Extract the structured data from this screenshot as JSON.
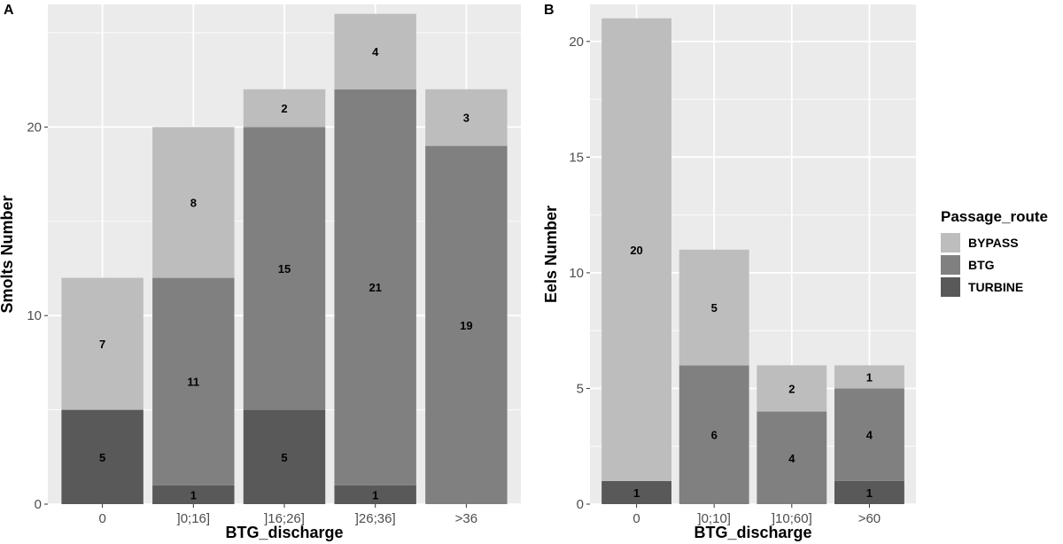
{
  "colors": {
    "panel_bg": "#ebebeb",
    "grid": "#ffffff",
    "BYPASS": "#bdbdbd",
    "BTG": "#808080",
    "TURBINE": "#595959"
  },
  "legend": {
    "title": "Passage_route",
    "items": [
      "BYPASS",
      "BTG",
      "TURBINE"
    ]
  },
  "chart_data": [
    {
      "type": "bar",
      "panel": "A",
      "xlabel": "BTG_discharge",
      "ylabel": "Smolts Number",
      "ylim": [
        0,
        26.5
      ],
      "yticks": [
        0,
        10,
        20
      ],
      "categories": [
        "0",
        "]0;16]",
        "]16;26]",
        "]26;36]",
        ">36"
      ],
      "series": [
        {
          "name": "TURBINE",
          "values": [
            5,
            1,
            5,
            1,
            0
          ],
          "labels": [
            "5",
            "1",
            "5",
            "1",
            ""
          ]
        },
        {
          "name": "BTG",
          "values": [
            0,
            11,
            15,
            21,
            19
          ],
          "labels": [
            "",
            "11",
            "15",
            "21",
            "19"
          ]
        },
        {
          "name": "BYPASS",
          "values": [
            7,
            8,
            2,
            4,
            3
          ],
          "labels": [
            "7",
            "8",
            "2",
            "4",
            "3"
          ]
        }
      ]
    },
    {
      "type": "bar",
      "panel": "B",
      "xlabel": "BTG_discharge",
      "ylabel": "Eels Number",
      "ylim": [
        0,
        21.6
      ],
      "yticks": [
        0,
        5,
        10,
        15,
        20
      ],
      "categories": [
        "0",
        "]0;10]",
        "]10;60]",
        ">60"
      ],
      "series": [
        {
          "name": "TURBINE",
          "values": [
            1,
            0,
            0,
            1
          ],
          "labels": [
            "1",
            "",
            "",
            "1"
          ]
        },
        {
          "name": "BTG",
          "values": [
            0,
            6,
            4,
            4
          ],
          "labels": [
            "",
            "6",
            "4",
            "4"
          ]
        },
        {
          "name": "BYPASS",
          "values": [
            20,
            5,
            2,
            1
          ],
          "labels": [
            "20",
            "5",
            "2",
            "1"
          ]
        }
      ]
    }
  ]
}
